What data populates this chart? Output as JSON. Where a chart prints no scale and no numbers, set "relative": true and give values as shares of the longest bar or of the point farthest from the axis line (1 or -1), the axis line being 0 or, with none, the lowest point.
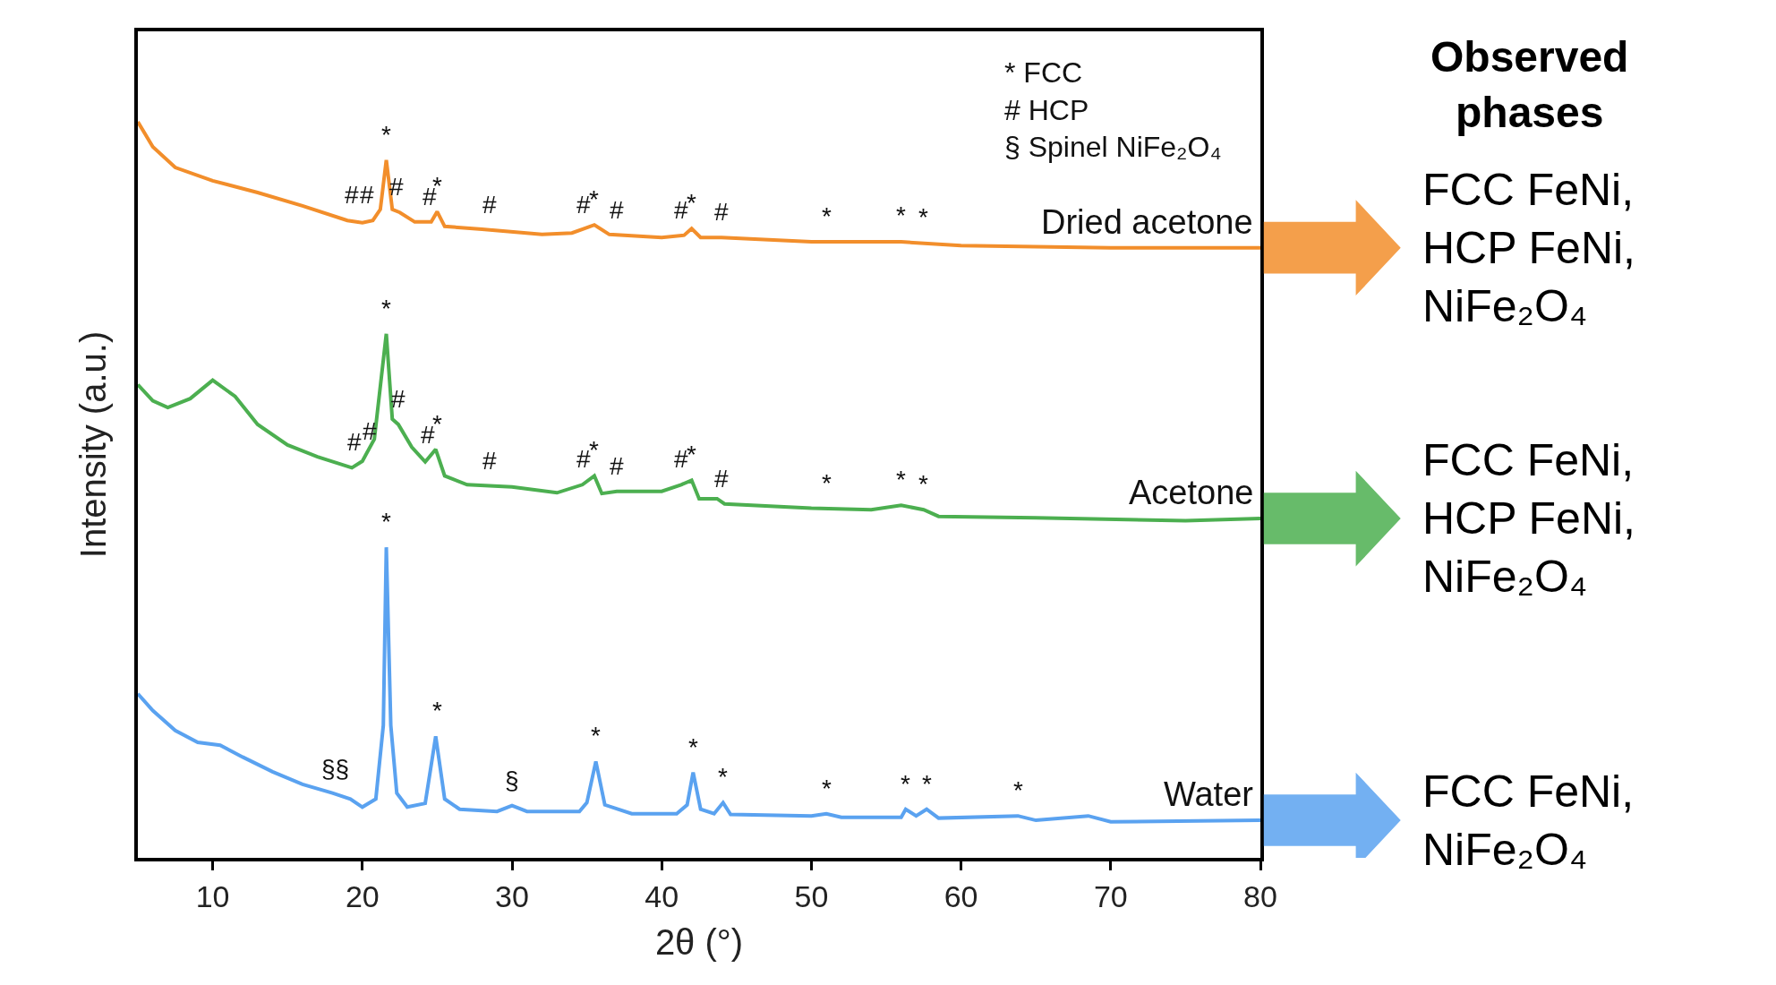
{
  "chart_data": {
    "type": "line",
    "relative": true,
    "xlabel": "2θ (°)",
    "ylabel": "Intensity (a.u.)",
    "xlim": [
      5,
      80
    ],
    "xticks": [
      10,
      20,
      30,
      40,
      50,
      60,
      70,
      80
    ],
    "legend": false,
    "marker": "none",
    "line_style": "solid",
    "series": [
      {
        "name": "Dried acetone",
        "color": "#f28e2b",
        "x": [
          5,
          6,
          7.5,
          10,
          13,
          16,
          19,
          20,
          20.7,
          21.2,
          21.6,
          22,
          22.5,
          23.5,
          24.6,
          25,
          25.5,
          28,
          32,
          34,
          35.5,
          36.5,
          40,
          41.5,
          42,
          42.6,
          44,
          50,
          56,
          60,
          70,
          80
        ],
        "values": [
          1.0,
          0.966,
          0.938,
          0.92,
          0.904,
          0.886,
          0.866,
          0.863,
          0.866,
          0.881,
          0.948,
          0.881,
          0.877,
          0.864,
          0.864,
          0.878,
          0.858,
          0.854,
          0.847,
          0.849,
          0.86,
          0.847,
          0.843,
          0.846,
          0.855,
          0.843,
          0.843,
          0.837,
          0.837,
          0.832,
          0.829,
          0.829
        ]
      },
      {
        "name": "Acetone",
        "color": "#4caf50",
        "x": [
          5,
          6,
          7,
          8.5,
          10,
          11.5,
          13,
          15,
          17,
          19.3,
          20,
          20.8,
          21.6,
          22,
          22.4,
          23.3,
          24.2,
          24.9,
          25.5,
          27,
          30,
          33,
          34.7,
          35.5,
          36,
          37,
          40,
          41.3,
          42,
          42.5,
          43.7,
          44.2,
          50,
          54,
          56,
          57.5,
          58.5,
          65,
          75,
          80
        ],
        "values": [
          0.643,
          0.621,
          0.612,
          0.624,
          0.649,
          0.627,
          0.589,
          0.561,
          0.545,
          0.53,
          0.539,
          0.569,
          0.712,
          0.596,
          0.589,
          0.558,
          0.538,
          0.555,
          0.519,
          0.507,
          0.504,
          0.496,
          0.507,
          0.519,
          0.495,
          0.498,
          0.498,
          0.507,
          0.513,
          0.488,
          0.488,
          0.481,
          0.475,
          0.473,
          0.479,
          0.473,
          0.464,
          0.462,
          0.458,
          0.461
        ]
      },
      {
        "name": "Water",
        "color": "#5aa2f0",
        "x": [
          5,
          6,
          7.5,
          9,
          10.5,
          12,
          14,
          16,
          18,
          19.2,
          20,
          20.9,
          21.4,
          21.6,
          21.9,
          22.3,
          23,
          24.2,
          24.9,
          25.5,
          26.5,
          29,
          30,
          31,
          34.5,
          35,
          35.6,
          36.2,
          38,
          41,
          41.7,
          42.1,
          42.6,
          43.5,
          44.1,
          44.6,
          50,
          51,
          52,
          56,
          56.3,
          57,
          57.7,
          58.5,
          63.8,
          65,
          68.5,
          70,
          80
        ],
        "values": [
          0.223,
          0.2,
          0.173,
          0.157,
          0.153,
          0.137,
          0.117,
          0.1,
          0.088,
          0.08,
          0.069,
          0.08,
          0.18,
          0.422,
          0.18,
          0.088,
          0.069,
          0.074,
          0.165,
          0.08,
          0.066,
          0.063,
          0.071,
          0.063,
          0.063,
          0.075,
          0.131,
          0.072,
          0.06,
          0.06,
          0.072,
          0.116,
          0.066,
          0.06,
          0.075,
          0.059,
          0.057,
          0.06,
          0.055,
          0.055,
          0.066,
          0.057,
          0.066,
          0.054,
          0.057,
          0.051,
          0.057,
          0.049,
          0.051
        ]
      }
    ],
    "annotations": [
      "* FCC",
      "# HCP",
      "§ Spinel NiFe₂O₄",
      "Observed phases",
      "FCC FeNi,\nHCP FeNi,\nNiFe₂O₄",
      "FCC FeNi,\nHCP FeNi,\nNiFe₂O₄",
      "FCC FeNi,\nNiFe₂O₄",
      {
        "text": "#",
        "x": 19.3,
        "y": 0.866
      },
      {
        "text": "#",
        "x": 20.3,
        "y": 0.866
      },
      {
        "text": "*",
        "x": 21.6,
        "y": 0.948
      },
      {
        "text": "#",
        "x": 22.3,
        "y": 0.877
      },
      {
        "text": "#",
        "x": 24.5,
        "y": 0.864
      },
      {
        "text": "*",
        "x": 25,
        "y": 0.878
      },
      {
        "text": "#",
        "x": 28.5,
        "y": 0.853
      },
      {
        "text": "#",
        "x": 34.8,
        "y": 0.853
      },
      {
        "text": "*",
        "x": 35.5,
        "y": 0.86
      },
      {
        "text": "#",
        "x": 37,
        "y": 0.846
      },
      {
        "text": "#",
        "x": 41.3,
        "y": 0.846
      },
      {
        "text": "*",
        "x": 42,
        "y": 0.855
      },
      {
        "text": "#",
        "x": 44,
        "y": 0.843
      },
      {
        "text": "*",
        "x": 51,
        "y": 0.837
      },
      {
        "text": "*",
        "x": 56,
        "y": 0.838
      },
      {
        "text": "*",
        "x": 57.5,
        "y": 0.836
      },
      {
        "text": "#",
        "x": 19.5,
        "y": 0.53
      },
      {
        "text": "#",
        "x": 20.5,
        "y": 0.545
      },
      {
        "text": "*",
        "x": 21.6,
        "y": 0.712
      },
      {
        "text": "#",
        "x": 22.4,
        "y": 0.589
      },
      {
        "text": "#",
        "x": 24.4,
        "y": 0.54
      },
      {
        "text": "*",
        "x": 25,
        "y": 0.555
      },
      {
        "text": "#",
        "x": 28.5,
        "y": 0.505
      },
      {
        "text": "#",
        "x": 34.8,
        "y": 0.507
      },
      {
        "text": "*",
        "x": 35.5,
        "y": 0.519
      },
      {
        "text": "#",
        "x": 37,
        "y": 0.498
      },
      {
        "text": "#",
        "x": 41.3,
        "y": 0.507
      },
      {
        "text": "*",
        "x": 42,
        "y": 0.513
      },
      {
        "text": "#",
        "x": 44,
        "y": 0.481
      },
      {
        "text": "*",
        "x": 51,
        "y": 0.475
      },
      {
        "text": "*",
        "x": 56,
        "y": 0.479
      },
      {
        "text": "*",
        "x": 57.5,
        "y": 0.473
      },
      {
        "text": "§§",
        "x": 18.2,
        "y": 0.086
      },
      {
        "text": "*",
        "x": 21.6,
        "y": 0.422
      },
      {
        "text": "*",
        "x": 25,
        "y": 0.165
      },
      {
        "text": "§",
        "x": 30,
        "y": 0.071
      },
      {
        "text": "*",
        "x": 35.6,
        "y": 0.131
      },
      {
        "text": "*",
        "x": 42.1,
        "y": 0.116
      },
      {
        "text": "*",
        "x": 44.1,
        "y": 0.075
      },
      {
        "text": "*",
        "x": 51,
        "y": 0.06
      },
      {
        "text": "*",
        "x": 56.3,
        "y": 0.066
      },
      {
        "text": "*",
        "x": 57.7,
        "y": 0.066
      },
      {
        "text": "*",
        "x": 63.8,
        "y": 0.057
      }
    ]
  }
}
